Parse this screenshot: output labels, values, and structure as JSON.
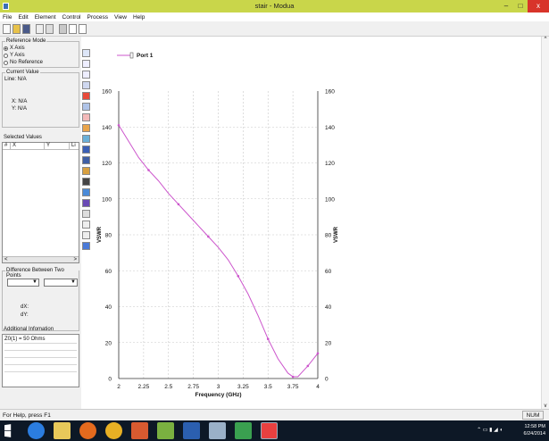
{
  "window": {
    "title": "stair - Modua",
    "controls": [
      "–",
      "□",
      "x"
    ]
  },
  "menu": {
    "items": [
      "File",
      "Edit",
      "Element",
      "Control",
      "Process",
      "View",
      "Help"
    ]
  },
  "left_panel": {
    "reference_mode": {
      "label": "Reference Mode",
      "options": [
        "X Axis",
        "Y Axis",
        "No Reference"
      ],
      "selected": "X Axis"
    },
    "current_value": {
      "label": "Current Value",
      "line": "Line: N/A",
      "x": "X: N/A",
      "y": "Y: N/A"
    },
    "selected_values": {
      "label": "Selected Values",
      "columns": [
        "#",
        "X",
        "Y",
        "Li"
      ],
      "scroll_left": "<",
      "scroll_right": ">"
    },
    "difference": {
      "label": "Difference Between Two Points",
      "dx": "dX:",
      "dy": "dY:"
    },
    "additional_info": {
      "label": "Additional Infomation",
      "text": "Z0(1) = 50 Ohms"
    }
  },
  "status": {
    "help": "For Help, press F1",
    "indicator": "NUM"
  },
  "taskbar": {
    "time": "12:58 PM",
    "date": "6/24/2014"
  },
  "chart_data": {
    "type": "line",
    "title": "",
    "xlabel": "Frequency (GHz)",
    "ylabel": "VSWR",
    "ylabel_right": "VSWR",
    "xlim": [
      2,
      4
    ],
    "ylim": [
      0,
      160
    ],
    "x_ticks": [
      2,
      2.25,
      2.5,
      2.75,
      3,
      3.25,
      3.5,
      3.75,
      4
    ],
    "x_tick_labels": [
      "2",
      "2.25",
      "2.5",
      "2.75",
      "3",
      "3.25",
      "3.5",
      "3.75",
      "4"
    ],
    "y_ticks": [
      0,
      20,
      40,
      60,
      80,
      100,
      120,
      140,
      160
    ],
    "y_tick_labels": [
      "0",
      "20",
      "40",
      "60",
      "80",
      "100",
      "120",
      "140",
      "160"
    ],
    "grid": true,
    "legend_position": "top-left",
    "series": [
      {
        "name": "Port 1",
        "color": "#cc55cc",
        "x": [
          2.0,
          2.1,
          2.2,
          2.3,
          2.4,
          2.5,
          2.6,
          2.7,
          2.8,
          2.9,
          3.0,
          3.1,
          3.2,
          3.3,
          3.4,
          3.5,
          3.6,
          3.7,
          3.75,
          3.8,
          3.85,
          3.9,
          4.0
        ],
        "y": [
          141,
          132,
          123,
          116,
          110,
          103,
          97,
          91,
          85,
          79,
          73,
          66,
          57,
          47,
          35,
          22,
          11,
          3,
          1,
          1,
          4,
          7,
          14
        ]
      }
    ]
  }
}
